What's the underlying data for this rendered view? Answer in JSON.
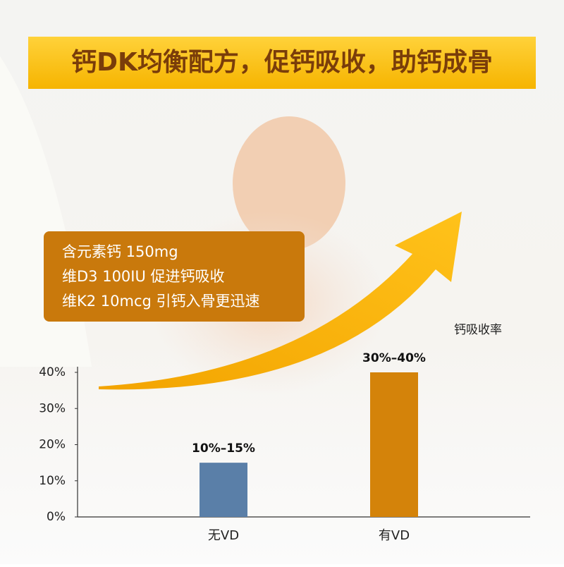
{
  "banner": {
    "title": "钙DK均衡配方，促钙吸收，助钙成骨"
  },
  "info": {
    "lines": [
      "含元素钙 150mg",
      "维D3 100IU 促进钙吸收",
      "维K2 10mcg 引钙入骨更迅速"
    ]
  },
  "chart_data": {
    "type": "bar",
    "y_label": "钙吸收率",
    "categories": [
      "无VD",
      "有VD"
    ],
    "values": [
      15,
      40
    ],
    "value_labels": [
      "10%–15%",
      "30%–40%"
    ],
    "colors": [
      "#5a7fa8",
      "#d4830a"
    ],
    "ylim": [
      0,
      40
    ],
    "yticks": [
      {
        "value": 0,
        "label": "0%"
      },
      {
        "value": 10,
        "label": "10%"
      },
      {
        "value": 20,
        "label": "20%"
      },
      {
        "value": 30,
        "label": "30%"
      },
      {
        "value": 40,
        "label": "40%"
      }
    ]
  }
}
